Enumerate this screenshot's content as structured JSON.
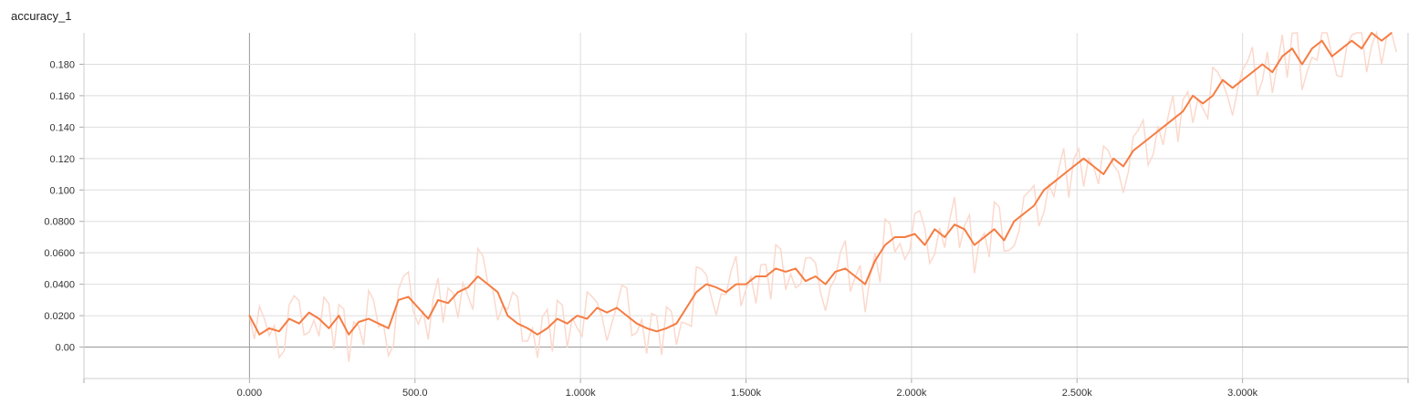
{
  "chart_data": {
    "type": "line",
    "title": "accuracy_1",
    "xlabel": "",
    "ylabel": "",
    "xlim": [
      -500,
      3500
    ],
    "ylim": [
      -0.02,
      0.2
    ],
    "xticks": [
      0,
      500,
      1000,
      1500,
      2000,
      2500,
      3000
    ],
    "xtick_labels": [
      "0.000",
      "500.0",
      "1.000k",
      "1.500k",
      "2.000k",
      "2.500k",
      "3.000k"
    ],
    "yticks": [
      0,
      0.02,
      0.04,
      0.06,
      0.08,
      0.1,
      0.12,
      0.14,
      0.16,
      0.18
    ],
    "ytick_labels": [
      "0.00",
      "0.0200",
      "0.0400",
      "0.0600",
      "0.0800",
      "0.100",
      "0.120",
      "0.140",
      "0.160",
      "0.180"
    ],
    "grid": true,
    "colors": {
      "smoothed": "#f57c42",
      "raw": "#fbd9cc",
      "grid": "#dddddd",
      "axis": "#999999"
    },
    "series": [
      {
        "kind": "smoothed",
        "x": [
          0,
          30,
          60,
          90,
          120,
          150,
          180,
          210,
          240,
          270,
          300,
          330,
          360,
          390,
          420,
          450,
          480,
          510,
          540,
          570,
          600,
          630,
          660,
          690,
          720,
          750,
          780,
          810,
          840,
          870,
          900,
          930,
          960,
          990,
          1020,
          1050,
          1080,
          1110,
          1140,
          1170,
          1200,
          1230,
          1260,
          1290,
          1320,
          1350,
          1380,
          1410,
          1440,
          1470,
          1500,
          1530,
          1560,
          1590,
          1620,
          1650,
          1680,
          1710,
          1740,
          1770,
          1800,
          1830,
          1860,
          1890,
          1920,
          1950,
          1980,
          2010,
          2040,
          2070,
          2100,
          2130,
          2160,
          2190,
          2220,
          2250,
          2280,
          2310,
          2340,
          2370,
          2400,
          2430,
          2460,
          2490,
          2520,
          2550,
          2580,
          2610,
          2640,
          2670,
          2700,
          2730,
          2760,
          2790,
          2820,
          2850,
          2880,
          2910,
          2940,
          2970,
          3000,
          3030,
          3060,
          3090,
          3120,
          3150,
          3180,
          3210,
          3240,
          3270,
          3300,
          3330,
          3360,
          3390,
          3420,
          3450
        ],
        "y": [
          0.02,
          0.008,
          0.012,
          0.01,
          0.018,
          0.015,
          0.022,
          0.018,
          0.012,
          0.02,
          0.008,
          0.016,
          0.018,
          0.015,
          0.012,
          0.03,
          0.032,
          0.025,
          0.018,
          0.03,
          0.028,
          0.035,
          0.038,
          0.045,
          0.04,
          0.035,
          0.02,
          0.015,
          0.012,
          0.008,
          0.012,
          0.018,
          0.015,
          0.02,
          0.018,
          0.025,
          0.022,
          0.025,
          0.02,
          0.015,
          0.012,
          0.01,
          0.012,
          0.015,
          0.025,
          0.035,
          0.04,
          0.038,
          0.035,
          0.04,
          0.04,
          0.045,
          0.045,
          0.05,
          0.048,
          0.05,
          0.042,
          0.045,
          0.04,
          0.048,
          0.05,
          0.045,
          0.04,
          0.055,
          0.065,
          0.07,
          0.07,
          0.072,
          0.065,
          0.075,
          0.07,
          0.078,
          0.075,
          0.065,
          0.07,
          0.075,
          0.068,
          0.08,
          0.085,
          0.09,
          0.1,
          0.105,
          0.11,
          0.115,
          0.12,
          0.115,
          0.11,
          0.12,
          0.115,
          0.125,
          0.13,
          0.135,
          0.14,
          0.145,
          0.15,
          0.16,
          0.155,
          0.16,
          0.17,
          0.165,
          0.17,
          0.175,
          0.18,
          0.175,
          0.185,
          0.19,
          0.18,
          0.19,
          0.195,
          0.185,
          0.19,
          0.195,
          0.19,
          0.2,
          0.195,
          0.2
        ]
      }
    ]
  }
}
